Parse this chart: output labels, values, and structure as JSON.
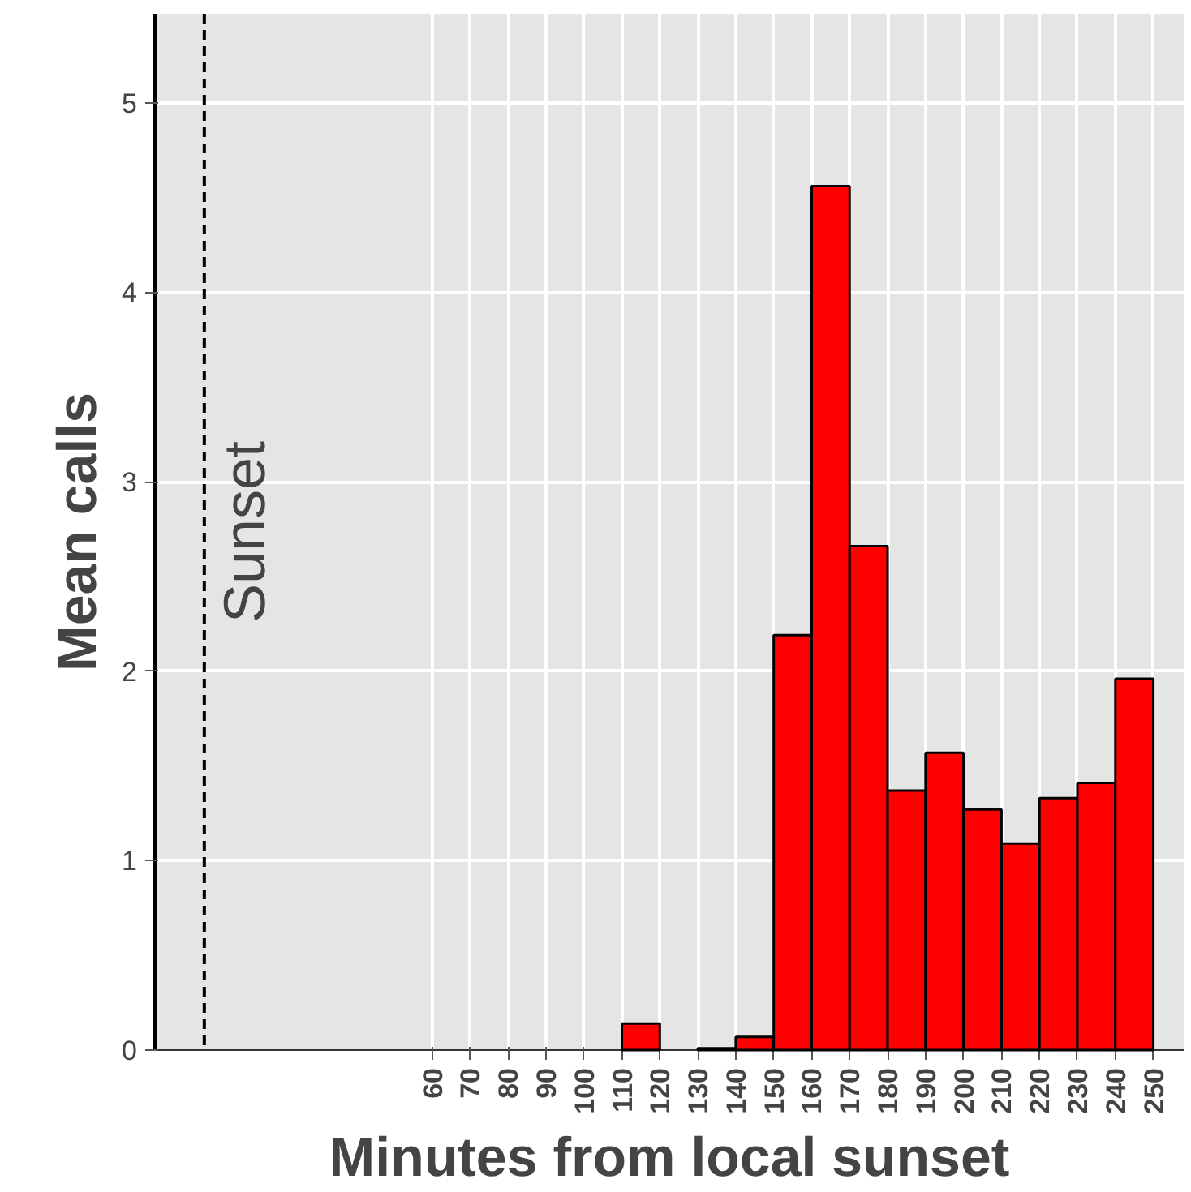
{
  "chart_data": {
    "type": "histogram",
    "xlabel": "Minutes from local sunset",
    "ylabel": "Mean calls",
    "bins": [
      60,
      70,
      80,
      90,
      100,
      110,
      120,
      130,
      140,
      150,
      160,
      170,
      180,
      190,
      200,
      210,
      220,
      230,
      240,
      250
    ],
    "values": [
      0,
      0,
      0,
      0,
      0,
      0.14,
      0,
      0.01,
      0.07,
      2.19,
      4.56,
      2.66,
      1.37,
      1.57,
      1.27,
      1.09,
      1.33,
      1.41,
      1.96
    ],
    "color": "#ff0000",
    "xlim": [
      -13,
      258
    ],
    "ylim": [
      0,
      5.47
    ],
    "xticks": [
      60,
      70,
      80,
      90,
      100,
      110,
      120,
      130,
      140,
      150,
      160,
      170,
      180,
      190,
      200,
      210,
      220,
      230,
      240,
      250
    ],
    "yticks": [
      0,
      1,
      2,
      3,
      4,
      5
    ],
    "grid": true,
    "ref_lines": [
      {
        "axis": "x",
        "value": 0,
        "label": "Sunset",
        "color": "#000000",
        "line_style": "dashed"
      }
    ]
  }
}
